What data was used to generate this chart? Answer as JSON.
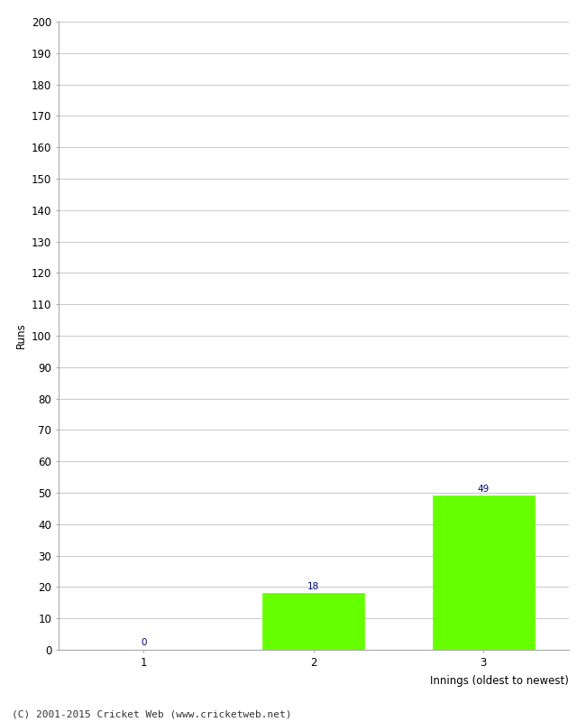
{
  "categories": [
    "1",
    "2",
    "3"
  ],
  "values": [
    0,
    18,
    49
  ],
  "bar_color": "#66ff00",
  "bar_edgecolor": "#66ff00",
  "xlabel": "Innings (oldest to newest)",
  "ylabel": "Runs",
  "ylim": [
    0,
    200
  ],
  "yticks": [
    0,
    10,
    20,
    30,
    40,
    50,
    60,
    70,
    80,
    90,
    100,
    110,
    120,
    130,
    140,
    150,
    160,
    170,
    180,
    190,
    200
  ],
  "label_color": "#000080",
  "label_fontsize": 7.5,
  "tick_fontsize": 8.5,
  "axis_label_fontsize": 8.5,
  "footer_text": "(C) 2001-2015 Cricket Web (www.cricketweb.net)",
  "footer_fontsize": 8,
  "background_color": "#ffffff",
  "grid_color": "#cccccc",
  "border_color": "#aaaaaa"
}
